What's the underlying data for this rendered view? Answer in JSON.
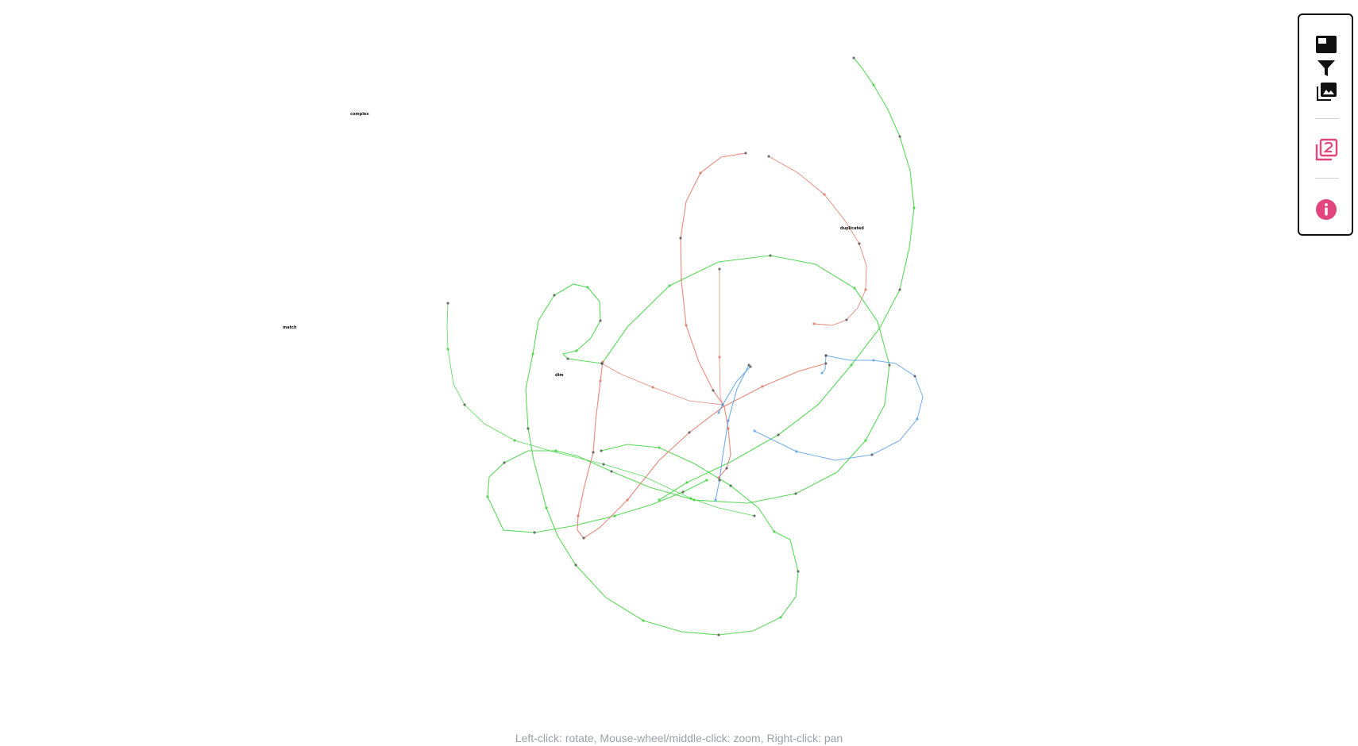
{
  "graph": {
    "labels": [
      {
        "id": "label-1",
        "text": "complex"
      },
      {
        "id": "label-2",
        "text": "duplicated"
      },
      {
        "id": "label-3",
        "text": "match"
      },
      {
        "id": "label-4",
        "text": "dim"
      }
    ],
    "edge_colors": {
      "green": "#3dd23d",
      "red": "#e07464",
      "blue": "#5aa0e6",
      "node": "#555555"
    }
  },
  "toolbar": {
    "icons": [
      {
        "name": "panel-icon"
      },
      {
        "name": "filter-icon"
      },
      {
        "name": "image-gallery-icon"
      },
      {
        "name": "layer-two-icon",
        "color": "#e0457b"
      },
      {
        "name": "info-icon",
        "color": "#e0457b"
      }
    ],
    "accent_color": "#e0457b"
  },
  "hint": {
    "text": "Left-click: rotate, Mouse-wheel/middle-click: zoom, Right-click: pan"
  }
}
